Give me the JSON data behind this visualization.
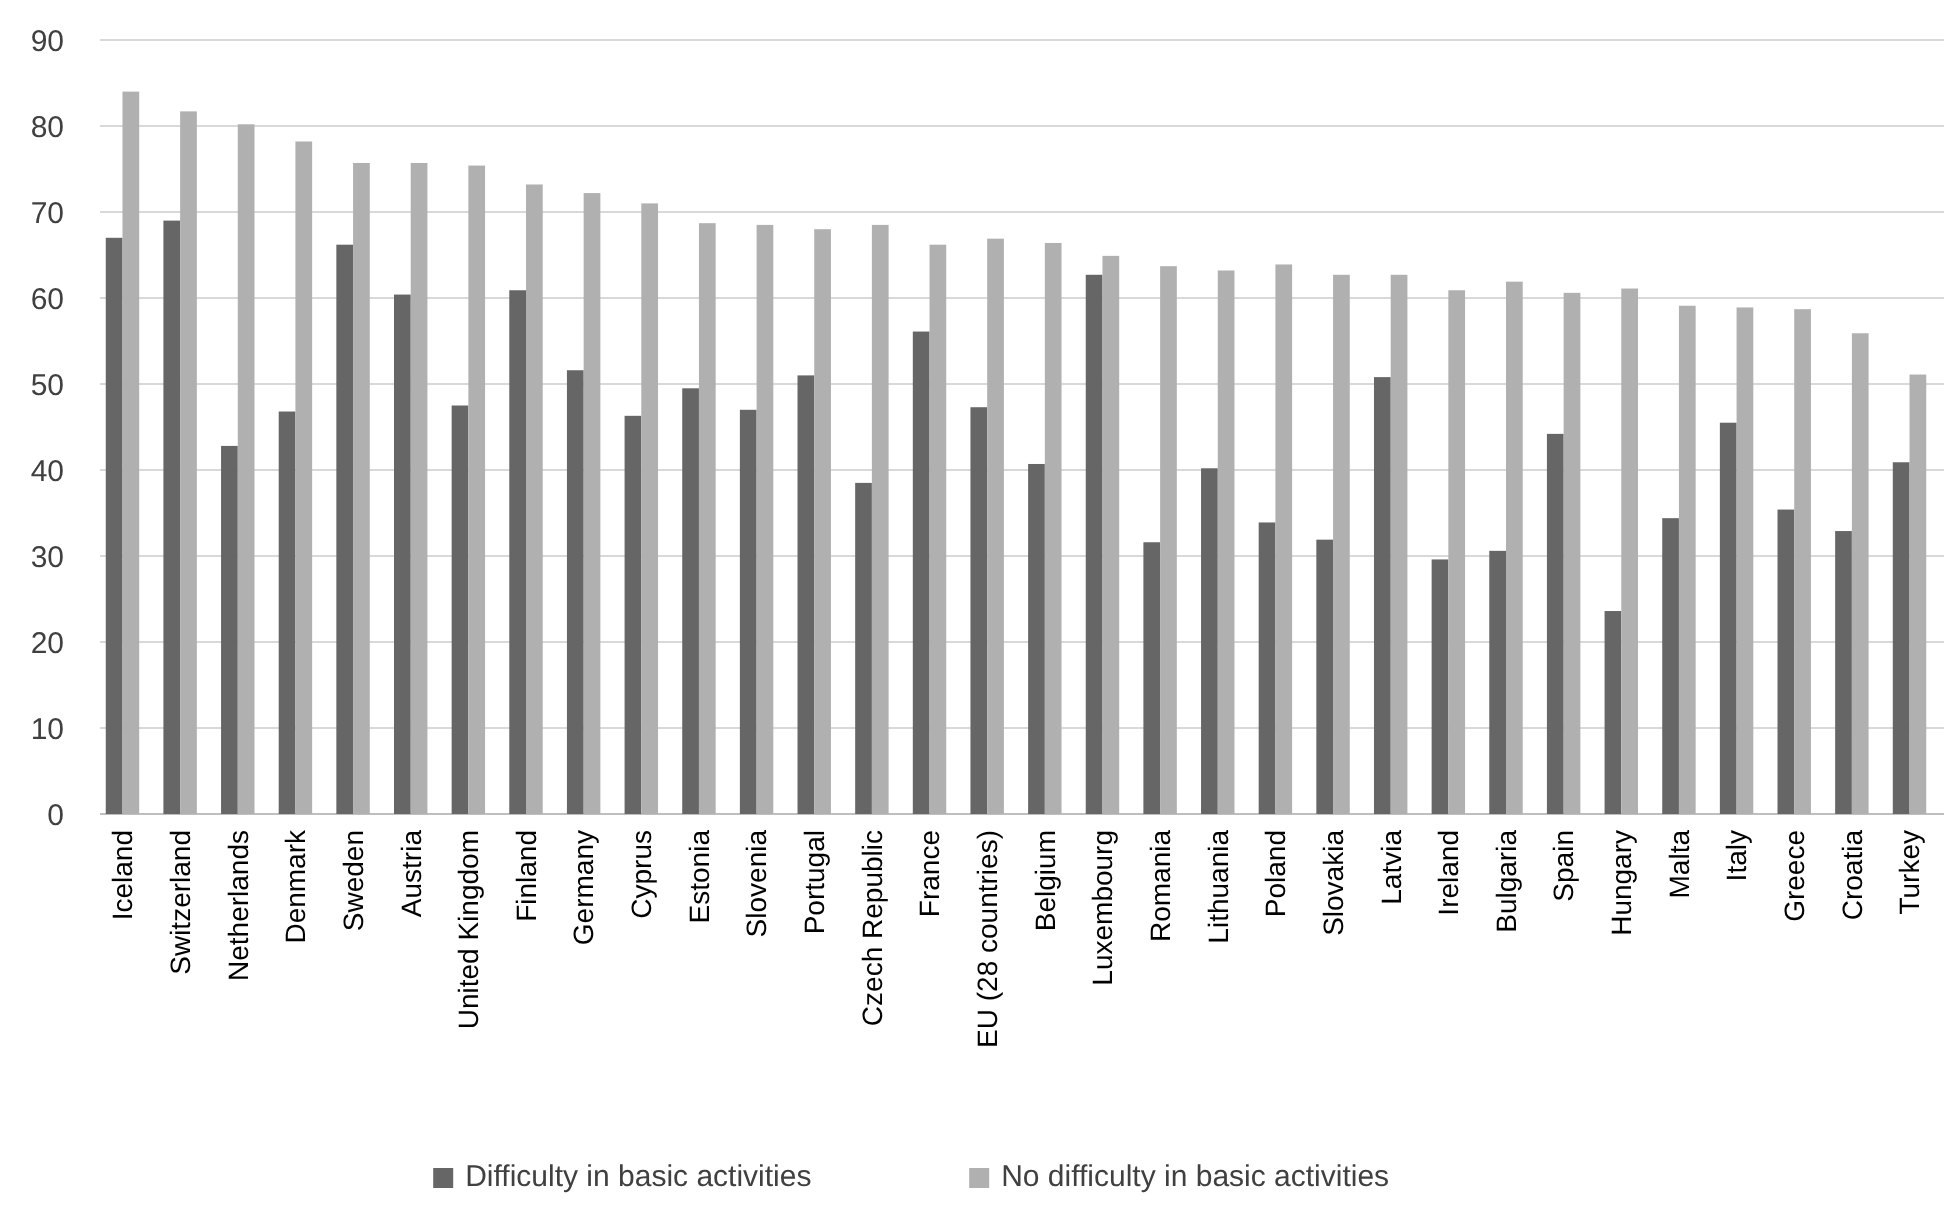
{
  "chart_data": {
    "type": "bar",
    "categories": [
      "Iceland",
      "Switzerland",
      "Netherlands",
      "Denmark",
      "Sweden",
      "Austria",
      "United Kingdom",
      "Finland",
      "Germany",
      "Cyprus",
      "Estonia",
      "Slovenia",
      "Portugal",
      "Czech Republic",
      "France",
      "EU (28 countries)",
      "Belgium",
      "Luxembourg",
      "Romania",
      "Lithuania",
      "Poland",
      "Slovakia",
      "Latvia",
      "Ireland",
      "Bulgaria",
      "Spain",
      "Hungary",
      "Malta",
      "Italy",
      "Greece",
      "Croatia",
      "Turkey"
    ],
    "series": [
      {
        "name": "Difficulty in basic activities",
        "color": "#666666",
        "values": [
          67,
          69,
          42.8,
          46.8,
          66.2,
          60.4,
          47.5,
          60.9,
          51.6,
          46.3,
          49.5,
          47,
          51,
          38.5,
          56.1,
          47.3,
          40.7,
          62.7,
          31.6,
          40.2,
          33.9,
          31.9,
          50.8,
          29.6,
          30.6,
          44.2,
          23.6,
          34.4,
          45.5,
          35.4,
          32.9,
          40.9
        ]
      },
      {
        "name": "No difficulty in basic activities",
        "color": "#b0b0b0",
        "values": [
          84,
          81.7,
          80.2,
          78.2,
          75.7,
          75.7,
          75.4,
          73.2,
          72.2,
          71,
          68.7,
          68.5,
          68,
          68.5,
          66.2,
          66.9,
          66.4,
          64.9,
          63.7,
          63.2,
          63.9,
          62.7,
          62.7,
          60.9,
          61.9,
          60.6,
          61.1,
          59.1,
          58.9,
          58.7,
          55.9,
          51.1
        ]
      }
    ],
    "ylim": [
      0,
      90
    ],
    "yticks": [
      0,
      10,
      20,
      30,
      40,
      50,
      60,
      70,
      80,
      90
    ],
    "grid": "y",
    "legend": "bottom"
  }
}
